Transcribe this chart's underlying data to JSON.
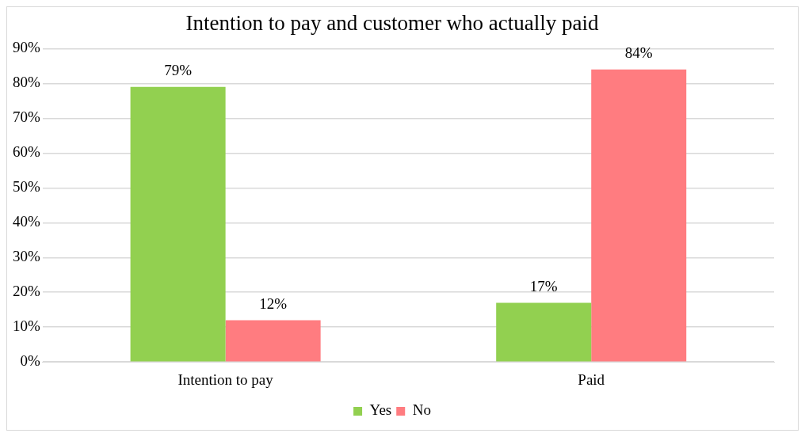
{
  "chart_data": {
    "type": "bar",
    "title": "Intention to pay and customer who actually paid",
    "categories": [
      "Intention to pay",
      "Paid"
    ],
    "series": [
      {
        "name": "Yes",
        "color": "#92d050",
        "values": [
          79,
          17
        ],
        "value_labels": [
          "79%",
          "17%"
        ]
      },
      {
        "name": "No",
        "color": "#ff7c80",
        "values": [
          12,
          84
        ],
        "value_labels": [
          "12%",
          "84%"
        ]
      }
    ],
    "ylim": [
      0,
      90
    ],
    "yticks": [
      {
        "value": 0,
        "label": "0%"
      },
      {
        "value": 10,
        "label": "10%"
      },
      {
        "value": 20,
        "label": "20%"
      },
      {
        "value": 30,
        "label": "30%"
      },
      {
        "value": 40,
        "label": "40%"
      },
      {
        "value": 50,
        "label": "50%"
      },
      {
        "value": 60,
        "label": "60%"
      },
      {
        "value": 70,
        "label": "70%"
      },
      {
        "value": 80,
        "label": "80%"
      },
      {
        "value": 90,
        "label": "90%"
      }
    ],
    "grid": "y",
    "legend": "bottom"
  }
}
